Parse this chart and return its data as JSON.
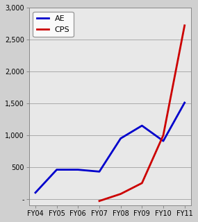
{
  "categories": [
    "FY04",
    "FY05",
    "FY06",
    "FY07",
    "FY08",
    "FY09",
    "FY10",
    "FY11"
  ],
  "ae_values": [
    100,
    460,
    460,
    430,
    950,
    1150,
    910,
    1510
  ],
  "cps_values": [
    null,
    null,
    null,
    -30,
    80,
    250,
    1000,
    2720
  ],
  "ae_color": "#0000CC",
  "cps_color": "#CC0000",
  "ylim": [
    -100,
    3000
  ],
  "yticks": [
    0,
    500,
    1000,
    1500,
    2000,
    2500,
    3000
  ],
  "ytick_labels": [
    "-",
    "500",
    "1,000",
    "1,500",
    "2,000",
    "2,500",
    "3,000"
  ],
  "plot_bg_color": "#E8E8E8",
  "fig_bg_color": "#D0D0D0",
  "grid_color": "#AAAAAA",
  "legend_labels": [
    "AE",
    "CPS"
  ],
  "linewidth": 2.0,
  "title": ""
}
